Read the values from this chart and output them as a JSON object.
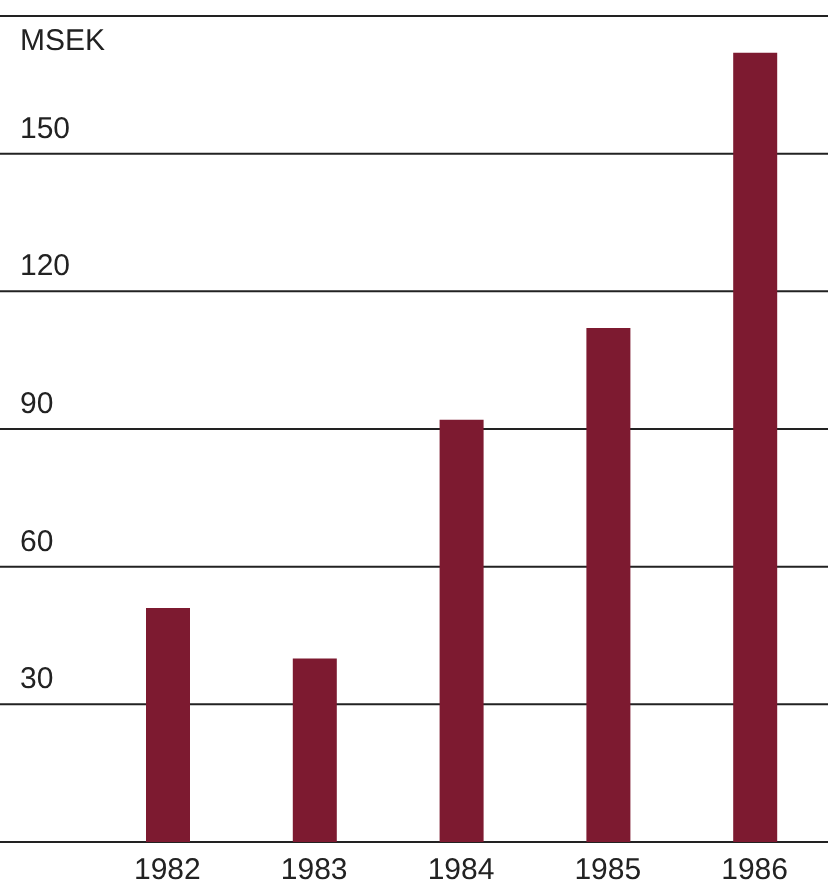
{
  "chart_data": {
    "type": "bar",
    "ylabel": "MSEK",
    "categories": [
      "1982",
      "1983",
      "1984",
      "1985",
      "1986"
    ],
    "values": [
      51,
      40,
      92,
      112,
      172
    ],
    "color": "#7d1a30",
    "ylim": [
      0,
      180
    ],
    "yticks": [
      {
        "value": 0,
        "label": null
      },
      30,
      60,
      90,
      120,
      150,
      {
        "value": 180,
        "label": null
      }
    ],
    "grid": "y"
  }
}
